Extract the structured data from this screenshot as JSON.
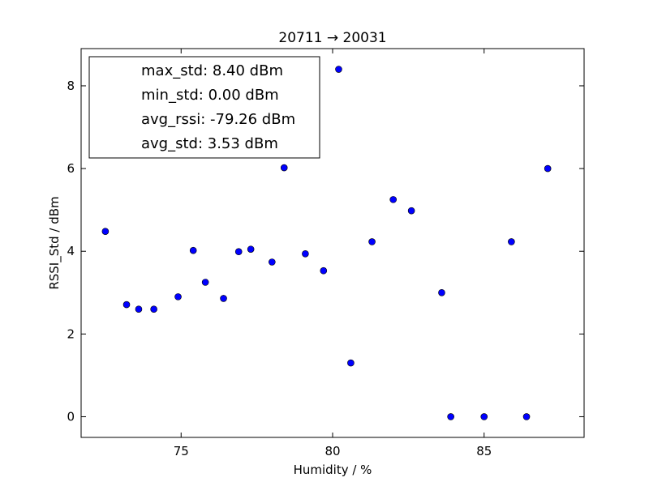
{
  "chart_data": {
    "type": "scatter",
    "title": "20711 → 20031",
    "xlabel": "Humidity / %",
    "ylabel": "RSSI_Std / dBm",
    "xlim": [
      71.7,
      88.3
    ],
    "ylim": [
      -0.5,
      8.9
    ],
    "xticks": [
      75,
      80,
      85
    ],
    "yticks": [
      0,
      2,
      4,
      6,
      8
    ],
    "grid": false,
    "legend_position": "top-left",
    "legend": [
      "max_std: 8.40 dBm",
      "min_std: 0.00 dBm",
      "avg_rssi: -79.26 dBm",
      "avg_std: 3.53 dBm"
    ],
    "marker_color": "#0000ff",
    "points": [
      {
        "x": 72.5,
        "y": 4.48
      },
      {
        "x": 73.2,
        "y": 2.71
      },
      {
        "x": 73.6,
        "y": 2.6
      },
      {
        "x": 74.1,
        "y": 2.6
      },
      {
        "x": 74.9,
        "y": 2.9
      },
      {
        "x": 75.4,
        "y": 4.02
      },
      {
        "x": 75.8,
        "y": 3.25
      },
      {
        "x": 76.4,
        "y": 2.86
      },
      {
        "x": 76.9,
        "y": 3.99
      },
      {
        "x": 77.3,
        "y": 4.05
      },
      {
        "x": 78.0,
        "y": 3.74
      },
      {
        "x": 78.4,
        "y": 6.02
      },
      {
        "x": 79.1,
        "y": 3.94
      },
      {
        "x": 79.7,
        "y": 3.53
      },
      {
        "x": 80.2,
        "y": 8.4
      },
      {
        "x": 80.6,
        "y": 1.3
      },
      {
        "x": 81.3,
        "y": 4.23
      },
      {
        "x": 82.0,
        "y": 5.25
      },
      {
        "x": 82.6,
        "y": 4.98
      },
      {
        "x": 83.6,
        "y": 3.0
      },
      {
        "x": 83.9,
        "y": 0.0
      },
      {
        "x": 85.0,
        "y": 0.0
      },
      {
        "x": 85.9,
        "y": 4.23
      },
      {
        "x": 86.4,
        "y": 0.0
      },
      {
        "x": 87.1,
        "y": 6.0
      }
    ]
  }
}
